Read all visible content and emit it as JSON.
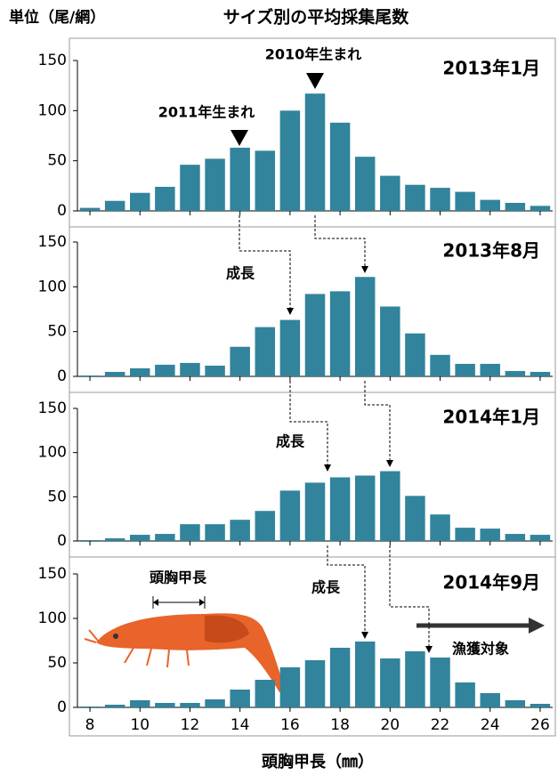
{
  "unit_label": "単位（尾/網）",
  "title": "サイズ別の平均採集尾数",
  "x_label": "頭胸甲長（㎜）",
  "chart_data": [
    {
      "type": "bar",
      "title": "2013年1月",
      "color": "#31849b",
      "x": [
        8,
        9,
        10,
        11,
        12,
        13,
        14,
        15,
        16,
        17,
        18,
        19,
        20,
        21,
        22,
        23,
        24,
        25,
        26
      ],
      "values": [
        3,
        10,
        18,
        24,
        46,
        52,
        63,
        60,
        100,
        117,
        88,
        54,
        35,
        26,
        23,
        19,
        11,
        8,
        5
      ],
      "xlim": [
        7.5,
        26.5
      ],
      "ylim": [
        0,
        150
      ],
      "yticks": [
        0,
        50,
        100,
        150
      ],
      "annotations": [
        "2011年生まれ",
        "2010年生まれ"
      ]
    },
    {
      "type": "bar",
      "title": "2013年8月",
      "color": "#31849b",
      "x": [
        8,
        9,
        10,
        11,
        12,
        13,
        14,
        15,
        16,
        17,
        18,
        19,
        20,
        21,
        22,
        23,
        24,
        25,
        26
      ],
      "values": [
        1,
        5,
        9,
        13,
        15,
        12,
        33,
        55,
        63,
        92,
        95,
        111,
        78,
        48,
        24,
        14,
        14,
        6,
        5
      ],
      "xlim": [
        7.5,
        26.5
      ],
      "ylim": [
        0,
        150
      ],
      "yticks": [
        0,
        50,
        100,
        150
      ],
      "annotations": [
        "成長"
      ]
    },
    {
      "type": "bar",
      "title": "2014年1月",
      "color": "#31849b",
      "x": [
        8,
        9,
        10,
        11,
        12,
        13,
        14,
        15,
        16,
        17,
        18,
        19,
        20,
        21,
        22,
        23,
        24,
        25,
        26
      ],
      "values": [
        1,
        3,
        7,
        8,
        19,
        19,
        24,
        34,
        57,
        66,
        72,
        74,
        79,
        51,
        30,
        15,
        14,
        8,
        7
      ],
      "xlim": [
        7.5,
        26.5
      ],
      "ylim": [
        0,
        150
      ],
      "yticks": [
        0,
        50,
        100,
        150
      ],
      "annotations": [
        "成長"
      ]
    },
    {
      "type": "bar",
      "title": "2014年9月",
      "color": "#31849b",
      "x": [
        8,
        9,
        10,
        11,
        12,
        13,
        14,
        15,
        16,
        17,
        18,
        19,
        20,
        21,
        22,
        23,
        24,
        25,
        26
      ],
      "values": [
        1,
        3,
        8,
        5,
        5,
        9,
        20,
        31,
        45,
        53,
        67,
        74,
        55,
        63,
        56,
        28,
        16,
        8,
        4
      ],
      "xlim": [
        7.5,
        26.5
      ],
      "ylim": [
        0,
        150
      ],
      "yticks": [
        0,
        50,
        100,
        150
      ],
      "xticks": [
        8,
        10,
        12,
        14,
        16,
        18,
        20,
        22,
        24,
        26
      ],
      "annotations": [
        "頭胸甲長",
        "成長",
        "漁獲対象"
      ]
    }
  ]
}
